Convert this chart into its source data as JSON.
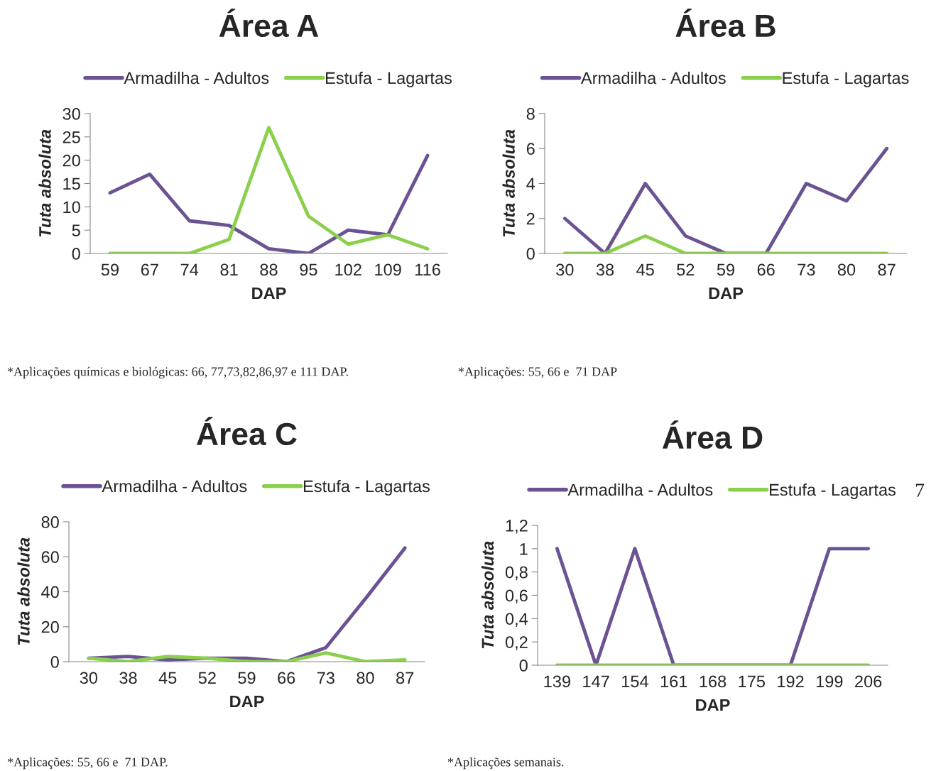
{
  "chart_data": [
    {
      "type": "line",
      "title": "Área A",
      "xlabel": "DAP",
      "ylabel": "Tuta absoluta",
      "categories": [
        "59",
        "67",
        "74",
        "81",
        "88",
        "95",
        "102",
        "109",
        "116"
      ],
      "series": [
        {
          "name": "Armadilha - Adultos",
          "color": "#6b5393",
          "values": [
            13,
            17,
            7,
            6,
            1,
            0,
            5,
            4,
            21
          ]
        },
        {
          "name": "Estufa - Lagartas",
          "color": "#8ccf4d",
          "values": [
            0,
            0,
            0,
            3,
            27,
            8,
            2,
            4,
            1
          ]
        }
      ],
      "ylim": [
        0,
        30
      ],
      "yticks": [
        0,
        5,
        10,
        15,
        20,
        25,
        30
      ],
      "legend": "top",
      "grid": false,
      "marker": "none",
      "line_style": "solid",
      "annotations": [
        "*Aplicações químicas e biológicas: 66, 77,73,82,86,97 e 111 DAP."
      ]
    },
    {
      "type": "line",
      "title": "Área B",
      "xlabel": "DAP",
      "ylabel": "Tuta absoluta",
      "categories": [
        "30",
        "38",
        "45",
        "52",
        "59",
        "66",
        "73",
        "80",
        "87"
      ],
      "series": [
        {
          "name": "Armadilha - Adultos",
          "color": "#6b5393",
          "values": [
            2,
            0,
            4,
            1,
            0,
            0,
            4,
            3,
            6
          ]
        },
        {
          "name": "Estufa - Lagartas",
          "color": "#8ccf4d",
          "values": [
            0,
            0,
            1,
            0,
            0,
            0,
            0,
            0,
            0
          ]
        }
      ],
      "ylim": [
        0,
        8
      ],
      "yticks": [
        0,
        2,
        4,
        6,
        8
      ],
      "legend": "top",
      "grid": false,
      "marker": "none",
      "line_style": "solid",
      "annotations": [
        "*Aplicações: 55, 66 e  71 DAP"
      ]
    },
    {
      "type": "line",
      "title": "Área C",
      "xlabel": "DAP",
      "ylabel": "Tuta absoluta",
      "categories": [
        "30",
        "38",
        "45",
        "52",
        "59",
        "66",
        "73",
        "80",
        "87"
      ],
      "series": [
        {
          "name": "Armadilha - Adultos",
          "color": "#6b5393",
          "values": [
            2,
            3,
            1,
            2,
            2,
            0,
            8,
            36,
            65
          ]
        },
        {
          "name": "Estufa - Lagartas",
          "color": "#8ccf4d",
          "values": [
            2,
            0,
            3,
            2,
            0,
            0,
            5,
            0,
            1
          ]
        }
      ],
      "ylim": [
        0,
        80
      ],
      "yticks": [
        0,
        20,
        40,
        60,
        80
      ],
      "legend": "top",
      "grid": false,
      "marker": "none",
      "line_style": "solid",
      "annotations": [
        "*Aplicações: 55, 66 e  71 DAP."
      ]
    },
    {
      "type": "line",
      "title": "Área D",
      "xlabel": "DAP",
      "ylabel": "Tuta absoluta",
      "categories": [
        "139",
        "147",
        "154",
        "161",
        "168",
        "175",
        "192",
        "199",
        "206"
      ],
      "series": [
        {
          "name": "Armadilha - Adultos",
          "color": "#6b5393",
          "values": [
            1,
            0,
            1,
            0,
            0,
            0,
            0,
            1,
            1
          ]
        },
        {
          "name": "Estufa - Lagartas",
          "color": "#8ccf4d",
          "values": [
            0,
            0,
            0,
            0,
            0,
            0,
            0,
            0,
            0
          ]
        }
      ],
      "ylim": [
        0,
        1.2
      ],
      "yticks": [
        0,
        {
          "value": 0.2,
          "label": "0,2"
        },
        {
          "value": 0.4,
          "label": "0,4"
        },
        {
          "value": 0.6,
          "label": "0,6"
        },
        {
          "value": 0.8,
          "label": "0,8"
        },
        1,
        {
          "value": 1.2,
          "label": "1,2"
        }
      ],
      "legend": "top",
      "grid": false,
      "marker": "none",
      "line_style": "solid",
      "annotations": [
        "*Aplicações semanais.",
        "7"
      ]
    }
  ]
}
